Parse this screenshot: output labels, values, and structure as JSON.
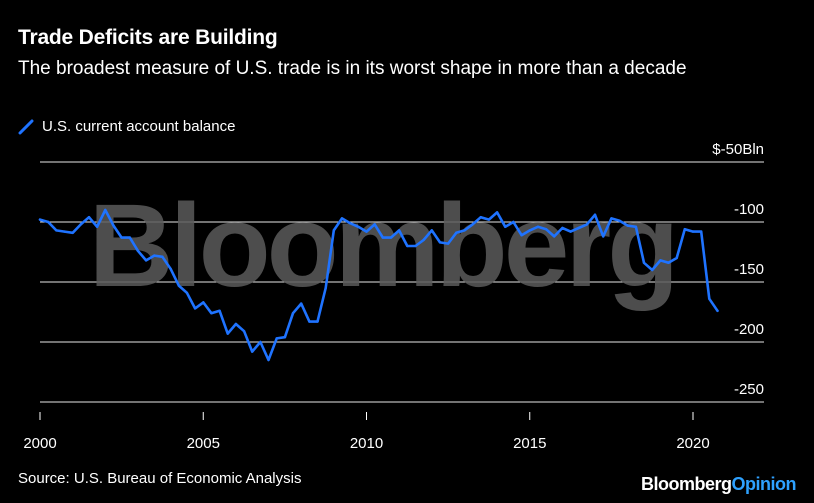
{
  "header": {
    "title": "Trade Deficits are Building",
    "subtitle": "The broadest measure of U.S. trade is in its worst shape in more than a decade"
  },
  "legend": {
    "label": "U.S. current account balance",
    "color": "#1f73ff"
  },
  "watermark": {
    "text": "Bloomberg"
  },
  "footer": {
    "source": "Source: U.S. Bureau of Economic Analysis",
    "brand_main": "Bloomberg",
    "brand_accent": "Opinion"
  },
  "chart_data": {
    "type": "line",
    "title": "Trade Deficits are Building",
    "xlabel": "",
    "ylabel": "",
    "xlim": [
      2000,
      2021.25
    ],
    "ylim": [
      -250,
      -50
    ],
    "x_ticks": [
      {
        "value": 2000,
        "label": "2000"
      },
      {
        "value": 2005,
        "label": "2005"
      },
      {
        "value": 2010,
        "label": "2010"
      },
      {
        "value": 2015,
        "label": "2015"
      },
      {
        "value": 2020,
        "label": "2020"
      }
    ],
    "y_ticks": [
      {
        "value": -50,
        "label": "$-50Bln"
      },
      {
        "value": -100,
        "label": "-100"
      },
      {
        "value": -150,
        "label": "-150"
      },
      {
        "value": -200,
        "label": "-200"
      },
      {
        "value": -250,
        "label": "-250"
      }
    ],
    "grid": "horizontal",
    "series": [
      {
        "name": "U.S. current account balance",
        "color": "#1f73ff",
        "x": [
          2000.0,
          2000.25,
          2000.5,
          2000.75,
          2001.0,
          2001.25,
          2001.5,
          2001.75,
          2002.0,
          2002.25,
          2002.5,
          2002.75,
          2003.0,
          2003.25,
          2003.5,
          2003.75,
          2004.0,
          2004.25,
          2004.5,
          2004.75,
          2005.0,
          2005.25,
          2005.5,
          2005.75,
          2006.0,
          2006.25,
          2006.5,
          2006.75,
          2007.0,
          2007.25,
          2007.5,
          2007.75,
          2008.0,
          2008.25,
          2008.5,
          2008.75,
          2009.0,
          2009.25,
          2009.5,
          2009.75,
          2010.0,
          2010.25,
          2010.5,
          2010.75,
          2011.0,
          2011.25,
          2011.5,
          2011.75,
          2012.0,
          2012.25,
          2012.5,
          2012.75,
          2013.0,
          2013.25,
          2013.5,
          2013.75,
          2014.0,
          2014.25,
          2014.5,
          2014.75,
          2015.0,
          2015.25,
          2015.5,
          2015.75,
          2016.0,
          2016.25,
          2016.5,
          2016.75,
          2017.0,
          2017.25,
          2017.5,
          2017.75,
          2018.0,
          2018.25,
          2018.5,
          2018.75,
          2019.0,
          2019.25,
          2019.5,
          2019.75,
          2020.0,
          2020.25,
          2020.5,
          2020.75
        ],
        "values": [
          -98,
          -100,
          -107,
          -108,
          -109,
          -102,
          -96,
          -104,
          -90,
          -103,
          -113,
          -113,
          -124,
          -132,
          -128,
          -129,
          -139,
          -153,
          -159,
          -172,
          -167,
          -176,
          -174,
          -193,
          -185,
          -191,
          -208,
          -200,
          -215,
          -197,
          -196,
          -176,
          -168,
          -183,
          -183,
          -155,
          -107,
          -97,
          -101,
          -104,
          -108,
          -102,
          -113,
          -113,
          -107,
          -120,
          -120,
          -115,
          -107,
          -117,
          -118,
          -109,
          -107,
          -102,
          -96,
          -98,
          -92,
          -104,
          -100,
          -111,
          -107,
          -104,
          -106,
          -112,
          -105,
          -108,
          -105,
          -102,
          -94,
          -112,
          -97,
          -99,
          -103,
          -104,
          -134,
          -140,
          -132,
          -134,
          -130,
          -106,
          -108,
          -108,
          -164,
          -174
        ]
      }
    ]
  }
}
